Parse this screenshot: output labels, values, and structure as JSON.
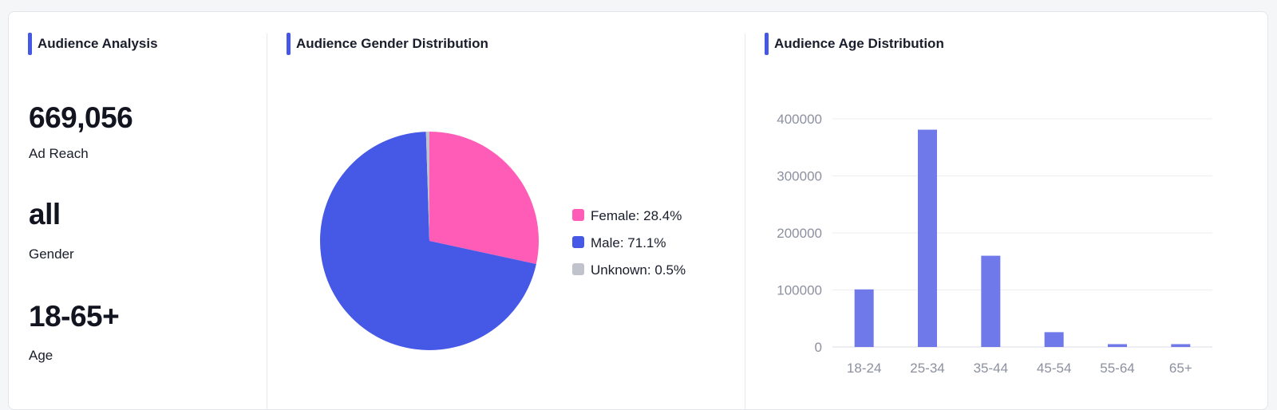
{
  "analysis": {
    "title": "Audience Analysis",
    "stats": [
      {
        "value": "669,056",
        "label": "Ad Reach"
      },
      {
        "value": "all",
        "label": "Gender"
      },
      {
        "value": "18-65+",
        "label": "Age"
      }
    ]
  },
  "gender": {
    "title": "Audience Gender Distribution"
  },
  "age": {
    "title": "Audience Age Distribution"
  },
  "colors": {
    "accent": "#4457e5",
    "female": "#ff5cb8",
    "male": "#4558e6",
    "unknown": "#c0c3cc",
    "bar": "#7079ea"
  },
  "chart_data": [
    {
      "type": "pie",
      "title": "Audience Gender Distribution",
      "slices": [
        {
          "name": "Female",
          "value": 28.4,
          "label": "Female: 28.4%"
        },
        {
          "name": "Male",
          "value": 71.1,
          "label": "Male: 71.1%"
        },
        {
          "name": "Unknown",
          "value": 0.5,
          "label": "Unknown: 0.5%"
        }
      ],
      "legend": "right"
    },
    {
      "type": "bar",
      "title": "Audience Age Distribution",
      "categories": [
        "18-24",
        "25-34",
        "35-44",
        "45-54",
        "55-64",
        "65+"
      ],
      "values": [
        101000,
        381000,
        160000,
        26000,
        5000,
        5000
      ],
      "ylim": [
        0,
        400000
      ],
      "yticks": [
        "0",
        "100000",
        "200000",
        "300000",
        "400000"
      ],
      "grid": true
    }
  ]
}
